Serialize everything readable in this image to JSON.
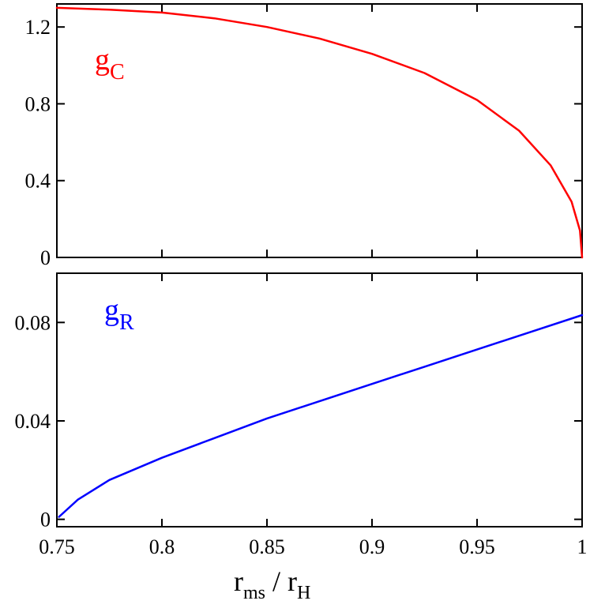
{
  "chart_data": [
    {
      "type": "line",
      "panel": "top",
      "label": {
        "main": "g",
        "sub": "C"
      },
      "color": "#ff0000",
      "xlim": [
        0.75,
        1.0
      ],
      "ylim": [
        0,
        1.32
      ],
      "yticks": [
        0,
        0.4,
        0.8,
        1.2
      ],
      "ytick_labels": [
        "0",
        "0.4",
        "0.8",
        "1.2"
      ],
      "series": [
        {
          "x": [
            0.75,
            0.775,
            0.8,
            0.825,
            0.85,
            0.875,
            0.9,
            0.925,
            0.95,
            0.97,
            0.985,
            0.995,
            0.999,
            1.0
          ],
          "y": [
            1.3,
            1.29,
            1.275,
            1.245,
            1.2,
            1.14,
            1.06,
            0.96,
            0.82,
            0.66,
            0.48,
            0.29,
            0.14,
            0.0
          ]
        }
      ]
    },
    {
      "type": "line",
      "panel": "bottom",
      "label": {
        "main": "g",
        "sub": "R"
      },
      "color": "#0000ff",
      "xlim": [
        0.75,
        1.0
      ],
      "ylim": [
        -0.003,
        0.1
      ],
      "yticks": [
        0,
        0.04,
        0.08
      ],
      "ytick_labels": [
        "0",
        "0.04",
        "0.08"
      ],
      "xticks": [
        0.75,
        0.8,
        0.85,
        0.9,
        0.95,
        1.0
      ],
      "xtick_labels": [
        "0.75",
        "0.8",
        "0.85",
        "0.9",
        "0.95",
        "1"
      ],
      "xlabel": {
        "r1": "r",
        "s1": "ms",
        "sep": " / ",
        "r2": "r",
        "s2": "H"
      },
      "series": [
        {
          "x": [
            0.751,
            0.76,
            0.775,
            0.8,
            0.825,
            0.85,
            0.875,
            0.9,
            0.925,
            0.95,
            0.975,
            1.0
          ],
          "y": [
            0.001,
            0.008,
            0.016,
            0.025,
            0.033,
            0.041,
            0.048,
            0.055,
            0.062,
            0.069,
            0.076,
            0.083
          ]
        }
      ]
    }
  ]
}
